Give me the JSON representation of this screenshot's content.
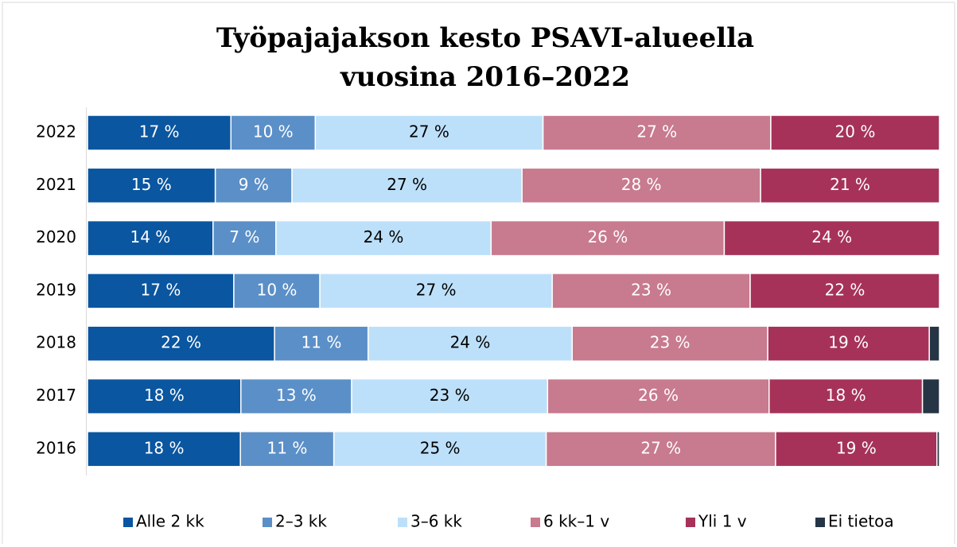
{
  "chart_data": {
    "type": "bar",
    "orientation": "horizontal",
    "stacking": "percent",
    "title": [
      "Työpajajakson kesto PSAVI-alueella",
      "vuosina 2016–2022"
    ],
    "categories": [
      "2022",
      "2021",
      "2020",
      "2019",
      "2018",
      "2017",
      "2016"
    ],
    "legend": "bottom",
    "series": [
      {
        "name": "Alle 2 kk",
        "color": "#0a56a0",
        "text_color": "#ffffff",
        "values": [
          17,
          15,
          14,
          17,
          22,
          18,
          18
        ],
        "value_labels": [
          "17 %",
          "15 %",
          "14 %",
          "17 %",
          "22 %",
          "18 %",
          "18 %"
        ]
      },
      {
        "name": "2–3 kk",
        "color": "#5b8fc8",
        "text_color": "#ffffff",
        "values": [
          10,
          9,
          7,
          10,
          11,
          13,
          11
        ],
        "value_labels": [
          "10 %",
          "9 %",
          "7 %",
          "10 %",
          "11 %",
          "13 %",
          "11 %"
        ]
      },
      {
        "name": "3–6 kk",
        "color": "#bde0fa",
        "text_color": "#000000",
        "values": [
          27,
          27,
          24,
          27,
          24,
          23,
          25
        ],
        "value_labels": [
          "27 %",
          "27 %",
          "24 %",
          "27 %",
          "24 %",
          "23 %",
          "25 %"
        ]
      },
      {
        "name": "6 kk–1 v",
        "color": "#c87a8f",
        "text_color": "#ffffff",
        "values": [
          27,
          28,
          26,
          23,
          23,
          26,
          27
        ],
        "value_labels": [
          "27 %",
          "28 %",
          "26 %",
          "23 %",
          "23 %",
          "26 %",
          "27 %"
        ]
      },
      {
        "name": "Yli 1 v",
        "color": "#a6325a",
        "text_color": "#ffffff",
        "values": [
          20,
          21,
          24,
          22,
          19,
          18,
          19
        ],
        "value_labels": [
          "20 %",
          "21 %",
          "24 %",
          "22 %",
          "19 %",
          "18 %",
          "19 %"
        ]
      },
      {
        "name": "Ei tietoa",
        "color": "#263545",
        "values": [
          0,
          0,
          0,
          0,
          1.2,
          2,
          0.3
        ]
      }
    ]
  }
}
